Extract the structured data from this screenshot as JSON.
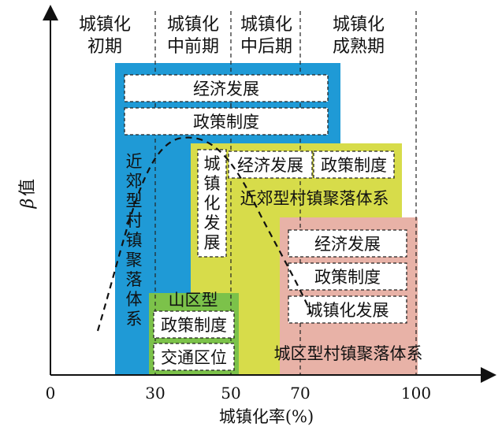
{
  "axes": {
    "y_label_greek": "β",
    "y_label_text": "值",
    "x_label": "城镇化率(%)",
    "x_ticks": [
      "0",
      "30",
      "50",
      "70",
      "100"
    ]
  },
  "stages": [
    {
      "line1": "城镇化",
      "line2": "初期"
    },
    {
      "line1": "城镇化",
      "line2": "中前期"
    },
    {
      "line1": "城镇化",
      "line2": "中后期"
    },
    {
      "line1": "城镇化",
      "line2": "成熟期"
    }
  ],
  "blue_region": {
    "boxes": [
      "经济发展",
      "政策制度"
    ],
    "title_vertical": "近郊型村镇聚落体系"
  },
  "yellow_region": {
    "vertical_box": "城镇化发展",
    "boxes": [
      "经济发展",
      "政策制度"
    ],
    "title": "近郊型村镇聚落体系"
  },
  "pink_region": {
    "boxes": [
      "经济发展",
      "政策制度",
      "城镇化发展"
    ],
    "title": "城区型村镇聚落体系"
  },
  "green_region": {
    "title": "山区型",
    "boxes": [
      "政策制度",
      "交通区位"
    ]
  },
  "colors": {
    "blue": "#1f9ad6",
    "yellow": "#d7dc4a",
    "pink": "#e8b2a7",
    "green": "#7cc24a"
  }
}
